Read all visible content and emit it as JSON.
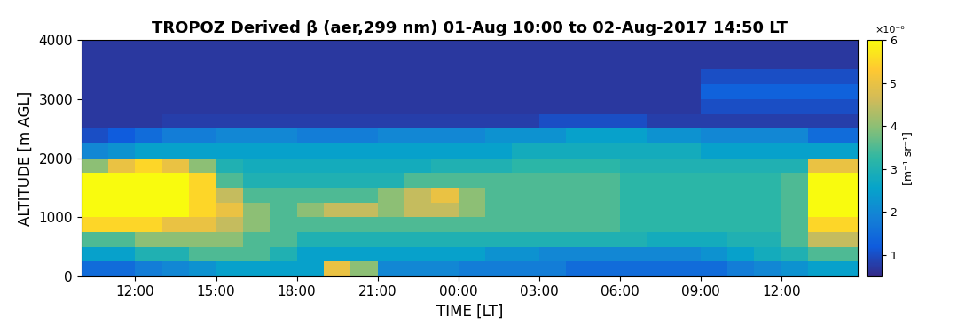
{
  "chart_data": {
    "type": "heatmap",
    "title": "TROPOZ Derived β (aer,299 nm) 01-Aug 10:00 to 02-Aug-2017 14:50 LT",
    "x_label": "TIME [LT]",
    "y_label": "ALTITUDE [m AGL]",
    "xlim": [
      10,
      38.83
    ],
    "xticks": [
      {
        "value": 12,
        "label": "12:00"
      },
      {
        "value": 15,
        "label": "15:00"
      },
      {
        "value": 18,
        "label": "18:00"
      },
      {
        "value": 21,
        "label": "21:00"
      },
      {
        "value": 24,
        "label": "00:00"
      },
      {
        "value": 27,
        "label": "03:00"
      },
      {
        "value": 30,
        "label": "06:00"
      },
      {
        "value": 33,
        "label": "09:00"
      },
      {
        "value": 36,
        "label": "12:00"
      }
    ],
    "ylim": [
      0,
      4000
    ],
    "yticks": [
      0,
      1000,
      2000,
      3000,
      4000
    ],
    "x_edges": [
      10,
      11,
      12,
      13,
      14,
      15,
      16,
      17,
      18,
      19,
      20,
      21,
      22,
      23,
      24,
      25,
      26,
      27,
      28,
      29,
      30,
      31,
      32,
      33,
      34,
      35,
      36,
      37,
      38,
      38.83
    ],
    "y_edges": [
      0,
      250,
      500,
      750,
      1000,
      1250,
      1500,
      1750,
      2000,
      2250,
      2500,
      2750,
      3000,
      3250,
      3500,
      3750,
      4000
    ],
    "cells_by_time": [
      [
        1.5,
        2.5,
        3.5,
        5.5,
        6,
        6,
        6,
        4,
        2,
        1,
        0.7,
        0.7,
        0.7,
        0.7,
        0.7,
        0.7
      ],
      [
        1.5,
        2.5,
        3.5,
        5.5,
        6,
        6,
        6,
        5,
        2.2,
        1.2,
        0.7,
        0.7,
        0.7,
        0.7,
        0.7,
        0.7
      ],
      [
        1.8,
        3,
        4,
        5.5,
        6,
        6,
        6,
        5.5,
        2.5,
        1.5,
        0.7,
        0.7,
        0.7,
        0.7,
        0.7,
        0.7
      ],
      [
        2,
        3,
        4,
        5,
        6,
        6,
        6,
        5,
        2.5,
        1.8,
        0.8,
        0.7,
        0.7,
        0.7,
        0.7,
        0.7
      ],
      [
        2.2,
        3.5,
        4,
        5,
        5.5,
        5.5,
        5.5,
        4,
        2.5,
        1.8,
        0.8,
        0.7,
        0.7,
        0.7,
        0.7,
        0.7
      ],
      [
        2.5,
        3.5,
        4,
        4.5,
        5,
        4.5,
        3.5,
        3,
        2.5,
        2,
        0.8,
        0.7,
        0.7,
        0.7,
        0.7,
        0.7
      ],
      [
        2.5,
        3.5,
        3.5,
        4,
        4,
        3.5,
        3,
        2.8,
        2.5,
        2,
        0.8,
        0.7,
        0.7,
        0.7,
        0.7,
        0.7
      ],
      [
        2.5,
        3,
        3.5,
        3.5,
        3.5,
        3.5,
        3,
        2.8,
        2.5,
        2,
        0.8,
        0.7,
        0.7,
        0.7,
        0.7,
        0.7
      ],
      [
        2.5,
        2.5,
        3,
        3.5,
        4,
        3.5,
        3,
        2.8,
        2.5,
        1.8,
        0.8,
        0.7,
        0.7,
        0.7,
        0.7,
        0.7
      ],
      [
        5,
        2.5,
        3,
        3.5,
        4.5,
        3.5,
        3,
        2.8,
        2.5,
        1.8,
        0.8,
        0.7,
        0.7,
        0.7,
        0.7,
        0.7
      ],
      [
        4,
        2.5,
        3,
        3.5,
        4.5,
        3.5,
        3,
        2.8,
        2.5,
        1.8,
        0.8,
        0.7,
        0.7,
        0.7,
        0.7,
        0.7
      ],
      [
        2,
        2.5,
        3,
        3.5,
        4,
        4,
        3,
        2.8,
        2.5,
        2,
        0.8,
        0.7,
        0.7,
        0.7,
        0.7,
        0.7
      ],
      [
        2,
        2.5,
        3,
        3.5,
        4.5,
        4.5,
        3.5,
        2.8,
        2.5,
        2,
        0.8,
        0.7,
        0.7,
        0.7,
        0.7,
        0.7
      ],
      [
        2,
        2.5,
        3,
        3.5,
        4.5,
        5,
        3.5,
        3,
        2.5,
        2,
        0.8,
        0.7,
        0.7,
        0.7,
        0.7,
        0.7
      ],
      [
        1.8,
        2.5,
        3,
        3.5,
        4,
        4,
        3.5,
        3,
        2.5,
        2,
        0.8,
        0.7,
        0.7,
        0.7,
        0.7,
        0.7
      ],
      [
        1.8,
        2.2,
        3,
        3.5,
        3.5,
        3.5,
        3.5,
        3,
        2.5,
        2.2,
        0.8,
        0.7,
        0.7,
        0.7,
        0.7,
        0.7
      ],
      [
        1.8,
        2.2,
        3,
        3.5,
        3.5,
        3.5,
        3.5,
        3.2,
        2.8,
        2.2,
        0.8,
        0.7,
        0.7,
        0.7,
        0.7,
        0.7
      ],
      [
        1.8,
        2,
        3,
        3.5,
        3.5,
        3.5,
        3.5,
        3.2,
        2.8,
        2.2,
        1,
        0.7,
        0.7,
        0.7,
        0.7,
        0.7
      ],
      [
        1.5,
        2,
        3,
        3.5,
        3.5,
        3.5,
        3.5,
        3.2,
        2.8,
        2.5,
        1,
        0.7,
        0.7,
        0.7,
        0.7,
        0.7
      ],
      [
        1.5,
        2,
        3,
        3.5,
        3.5,
        3.5,
        3.5,
        3.2,
        2.8,
        2.5,
        1,
        0.7,
        0.7,
        0.7,
        0.7,
        0.7
      ],
      [
        1.5,
        2,
        3,
        3.2,
        3.2,
        3.2,
        3.2,
        3,
        2.8,
        2.5,
        1,
        0.7,
        0.7,
        0.7,
        0.7,
        0.7
      ],
      [
        1.5,
        2,
        2.8,
        3.2,
        3.2,
        3.2,
        3.2,
        3,
        2.8,
        2.2,
        0.8,
        0.7,
        0.7,
        0.7,
        0.7,
        0.7
      ],
      [
        1.5,
        2,
        2.8,
        3.2,
        3.2,
        3.2,
        3.2,
        3,
        2.8,
        2.2,
        0.8,
        0.7,
        0.7,
        0.7,
        0.7,
        0.7
      ],
      [
        1.5,
        2.2,
        2.8,
        3.2,
        3.2,
        3.2,
        3.2,
        3,
        2.5,
        2,
        0.8,
        1,
        1.3,
        1,
        0.7,
        0.7
      ],
      [
        1.8,
        2.5,
        3,
        3.2,
        3.2,
        3.2,
        3.2,
        3,
        2.5,
        2,
        0.8,
        1,
        1.3,
        1,
        0.7,
        0.7
      ],
      [
        2,
        2.8,
        3,
        3.2,
        3.2,
        3.2,
        3.2,
        3,
        2.5,
        2,
        0.8,
        1,
        1.3,
        1,
        0.7,
        0.7
      ],
      [
        2.2,
        3,
        3.5,
        3.5,
        3.5,
        3.5,
        3.5,
        3,
        2.5,
        2,
        0.8,
        1,
        1.3,
        1,
        0.7,
        0.7
      ],
      [
        2.5,
        3.5,
        4.5,
        5.5,
        6,
        6,
        6,
        5,
        2.5,
        1.5,
        0.8,
        1,
        1.3,
        1,
        0.7,
        0.7
      ],
      [
        2.5,
        3.5,
        4.5,
        5.5,
        6,
        6,
        6,
        5,
        2.5,
        1.5,
        0.8,
        1,
        1.3,
        1,
        0.7,
        0.7
      ]
    ],
    "colorbar": {
      "range": [
        0.5,
        6
      ],
      "ticks": [
        1,
        2,
        3,
        4,
        5,
        6
      ],
      "label": "[m⁻¹ sr⁻¹]",
      "multiplier": "×10⁻⁶"
    }
  }
}
